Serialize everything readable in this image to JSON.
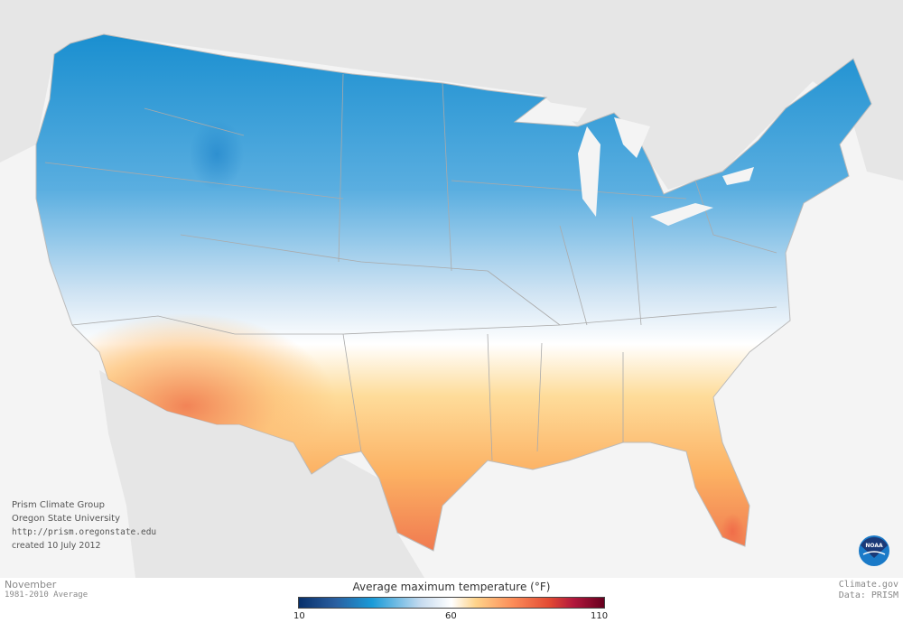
{
  "map": {
    "variable": "Average maximum temperature",
    "month": "November",
    "period": "1981-2010 Average",
    "credits": [
      "Prism Climate Group",
      "Oregon State University",
      "http://prism.oregonstate.edu",
      "created 10 July 2012"
    ]
  },
  "legend": {
    "title": "Average maximum temperature (°F)",
    "min": "10",
    "mid": "60",
    "max": "110",
    "colors": [
      "#08306b",
      "#1a9bd8",
      "#ffffff",
      "#fed38a",
      "#fc8d59",
      "#e34a33",
      "#67001f"
    ]
  },
  "footer": {
    "site": "Climate.gov",
    "source": "Data: PRISM"
  },
  "logo": {
    "text": "NOAA"
  }
}
